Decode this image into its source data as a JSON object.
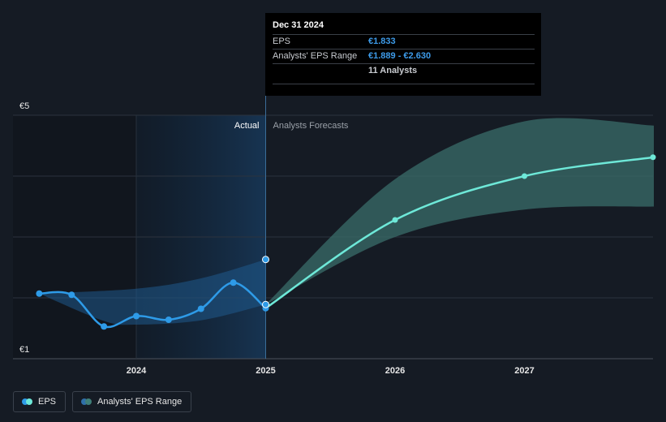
{
  "tooltip": {
    "date": "Dec 31 2024",
    "rows": [
      {
        "label": "EPS",
        "value": "€1.833"
      },
      {
        "label": "Analysts' EPS Range",
        "value": "€1.889 - €2.630"
      },
      {
        "label": "",
        "value": "11 Analysts"
      }
    ]
  },
  "labels": {
    "actual": "Actual",
    "forecast": "Analysts Forecasts"
  },
  "legend": [
    {
      "label": "EPS",
      "color_a": "#2e9be8",
      "color_b": "#6ee8d8"
    },
    {
      "label": "Analysts' EPS Range",
      "color_a": "#2f6fa8",
      "color_b": "#3f7f78"
    }
  ],
  "colors": {
    "background": "#151b24",
    "actual_shade": "#173452",
    "eps_actual": "#2e9be8",
    "eps_forecast": "#6ee8d8",
    "range_actual": "#1f5a8c",
    "range_forecast": "#3a6d69"
  },
  "chart_data": {
    "type": "line",
    "x_unit": "year",
    "xlim": [
      2023.2,
      2028.0
    ],
    "ylim": [
      1,
      5
    ],
    "ytick_labels": [
      {
        "value": 5,
        "label": "€5"
      },
      {
        "value": 1,
        "label": "€1"
      }
    ],
    "xtick_labels": [
      {
        "value": 2024,
        "label": "2024"
      },
      {
        "value": 2025,
        "label": "2025"
      },
      {
        "value": 2026,
        "label": "2026"
      },
      {
        "value": 2027,
        "label": "2027"
      }
    ],
    "gridlines": [
      5,
      4,
      3,
      2,
      1
    ],
    "divider_x": 2025,
    "series": [
      {
        "name": "EPS",
        "kind": "actual",
        "points": [
          {
            "x": 2023.25,
            "y": 2.07
          },
          {
            "x": 2023.5,
            "y": 2.05
          },
          {
            "x": 2023.75,
            "y": 1.53
          },
          {
            "x": 2024.0,
            "y": 1.7
          },
          {
            "x": 2024.25,
            "y": 1.64
          },
          {
            "x": 2024.5,
            "y": 1.82
          },
          {
            "x": 2024.75,
            "y": 2.25
          },
          {
            "x": 2025.0,
            "y": 1.83
          }
        ]
      },
      {
        "name": "EPS",
        "kind": "forecast",
        "points": [
          {
            "x": 2025.0,
            "y": 1.83
          },
          {
            "x": 2026.0,
            "y": 3.28
          },
          {
            "x": 2027.0,
            "y": 4.0
          },
          {
            "x": 2028.0,
            "y": 4.31
          }
        ]
      }
    ],
    "range_actual": {
      "upper": [
        {
          "x": 2023.25,
          "y": 2.07
        },
        {
          "x": 2024.0,
          "y": 2.15
        },
        {
          "x": 2024.5,
          "y": 2.32
        },
        {
          "x": 2025.0,
          "y": 2.63
        }
      ],
      "lower": [
        {
          "x": 2023.25,
          "y": 2.07
        },
        {
          "x": 2023.75,
          "y": 1.62
        },
        {
          "x": 2024.0,
          "y": 1.56
        },
        {
          "x": 2024.5,
          "y": 1.63
        },
        {
          "x": 2025.0,
          "y": 1.89
        }
      ]
    },
    "range_forecast": {
      "upper": [
        {
          "x": 2025.0,
          "y": 1.89
        },
        {
          "x": 2026.0,
          "y": 3.95
        },
        {
          "x": 2027.0,
          "y": 4.9
        },
        {
          "x": 2028.0,
          "y": 4.83
        }
      ],
      "lower": [
        {
          "x": 2025.0,
          "y": 1.89
        },
        {
          "x": 2026.0,
          "y": 3.0
        },
        {
          "x": 2027.0,
          "y": 3.45
        },
        {
          "x": 2028.0,
          "y": 3.5
        }
      ]
    },
    "markers": [
      {
        "x": 2025.0,
        "y": 2.63,
        "kind": "range-upper"
      },
      {
        "x": 2025.0,
        "y": 1.89,
        "kind": "range-lower"
      }
    ]
  }
}
